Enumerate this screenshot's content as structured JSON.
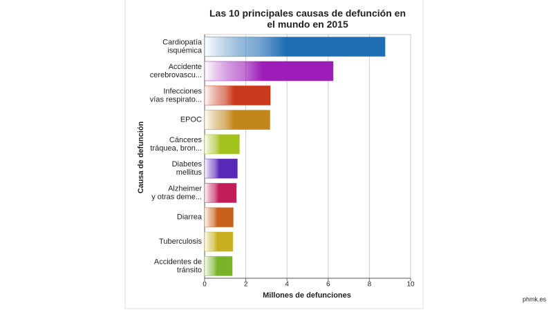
{
  "chart_data": {
    "type": "hbar",
    "title": "Las 10 principales causas de defunción en\nel mundo en 2015",
    "x_label": "Millones de defunciones",
    "y_label": "Causa de defunción",
    "categories": [
      "Cardiopatía\nisquémica",
      "Accidente\ncerebrovascu...",
      "Infecciones\nvías respirato...",
      "EPOC",
      "Cánceres\ntráquea, bron...",
      "Diabetes\nmellitus",
      "Alzheimer\ny otras deme...",
      "Diarrea",
      "Tuberculosis",
      "Accidentes de\ntránsito"
    ],
    "values": [
      8.76,
      6.24,
      3.19,
      3.17,
      1.69,
      1.59,
      1.54,
      1.39,
      1.37,
      1.34
    ],
    "colors": [
      "#1f6db3",
      "#9c1db8",
      "#c93a1c",
      "#c2861c",
      "#a3c21e",
      "#5a28b8",
      "#c21d58",
      "#c9611c",
      "#c9b01e",
      "#79b32a"
    ],
    "xlim": [
      0,
      10
    ],
    "xticks": [
      0,
      2,
      4,
      6,
      8,
      10
    ],
    "grid": true
  },
  "watermark": "phmk.es"
}
